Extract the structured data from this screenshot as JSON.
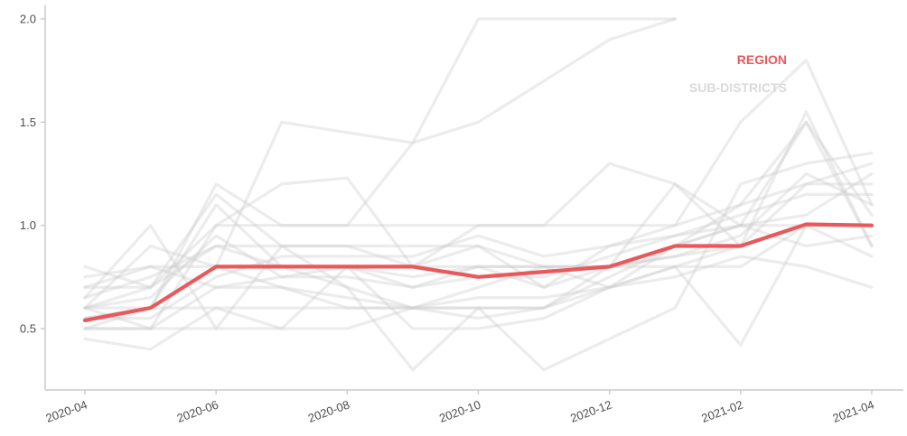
{
  "chart_data": {
    "type": "line",
    "x": [
      "2020-04",
      "2020-05",
      "2020-06",
      "2020-07",
      "2020-08",
      "2020-09",
      "2020-10",
      "2020-11",
      "2020-12",
      "2021-01",
      "2021-02",
      "2021-03",
      "2021-04"
    ],
    "x_tick_labels": [
      "2020-04",
      "2020-06",
      "2020-08",
      "2020-10",
      "2020-12",
      "2021-02",
      "2021-04"
    ],
    "y_ticks": [
      0.5,
      1.0,
      1.5,
      2.0
    ],
    "y_tick_labels": [
      "0.5",
      "1.0",
      "1.5",
      "2.0"
    ],
    "ylim": [
      0.28,
      2.08
    ],
    "grid": false,
    "legend": {
      "position": "top-right",
      "items": [
        {
          "label": "REGION",
          "color": "#e8595c"
        },
        {
          "label": "SUB-DISTRICTS",
          "color": "#d9d9d9"
        }
      ]
    },
    "highlight_series": {
      "name": "REGION",
      "color": "#e8595c",
      "values": [
        0.54,
        0.6,
        0.8,
        0.8,
        0.8,
        0.8,
        0.75,
        0.775,
        0.8,
        0.9,
        0.9,
        1.005,
        1.0
      ]
    },
    "background_series": {
      "name": "SUB-DISTRICTS",
      "color": "#cccccc",
      "series": [
        {
          "values": [
            0.55,
            0.6,
            1.2,
            1.0,
            1.0,
            1.4,
            1.5,
            1.7,
            1.9,
            2.0,
            2.0,
            2.0,
            2.0
          ],
          "end": 9
        },
        {
          "values": [
            0.5,
            0.6,
            0.8,
            1.5,
            1.45,
            1.4,
            2.0,
            2.0,
            2.0,
            2.0,
            2.0,
            2.0,
            2.0
          ],
          "end": 9
        },
        {
          "values": [
            0.6,
            0.7,
            1.0,
            1.2,
            1.23,
            0.8,
            1.0,
            1.0,
            1.0,
            1.0,
            1.5,
            1.8,
            1.1
          ]
        },
        {
          "values": [
            0.5,
            0.5,
            0.5,
            0.5,
            0.5,
            0.6,
            0.6,
            0.6,
            0.7,
            0.8,
            0.9,
            1.55,
            0.9
          ]
        },
        {
          "values": [
            0.65,
            1.0,
            0.5,
            0.9,
            0.7,
            0.3,
            0.6,
            0.3,
            0.45,
            0.6,
            1.2,
            1.3,
            1.35
          ]
        },
        {
          "values": [
            0.75,
            0.8,
            0.8,
            0.8,
            0.8,
            0.8,
            0.8,
            0.8,
            0.8,
            0.85,
            0.9,
            1.0,
            1.0
          ]
        },
        {
          "values": [
            0.6,
            0.5,
            1.0,
            1.0,
            1.0,
            1.0,
            1.0,
            1.0,
            1.3,
            1.2,
            0.9,
            1.2,
            1.3
          ]
        },
        {
          "values": [
            0.45,
            0.4,
            0.6,
            0.5,
            0.8,
            0.5,
            0.5,
            0.55,
            0.7,
            0.9,
            1.1,
            1.5,
            0.9
          ]
        },
        {
          "values": [
            0.8,
            0.7,
            0.9,
            0.9,
            0.9,
            0.9,
            0.9,
            0.7,
            0.9,
            1.0,
            1.1,
            1.2,
            1.2
          ]
        },
        {
          "values": [
            0.6,
            0.6,
            1.1,
            0.8,
            0.7,
            0.6,
            0.7,
            0.8,
            0.7,
            0.8,
            0.8,
            1.0,
            1.0
          ]
        },
        {
          "values": [
            0.7,
            0.8,
            0.7,
            0.7,
            0.6,
            0.6,
            0.6,
            0.6,
            0.8,
            0.8,
            0.42,
            1.0,
            0.85
          ]
        },
        {
          "values": [
            0.5,
            0.5,
            0.7,
            0.75,
            0.8,
            0.75,
            0.8,
            0.7,
            0.8,
            1.2,
            1.0,
            1.0,
            1.0
          ]
        },
        {
          "values": [
            0.65,
            0.75,
            0.9,
            0.8,
            0.8,
            0.7,
            0.8,
            0.8,
            0.8,
            0.85,
            0.95,
            1.25,
            1.1
          ]
        },
        {
          "values": [
            0.55,
            0.6,
            0.6,
            0.6,
            0.6,
            0.6,
            0.55,
            0.6,
            0.75,
            0.9,
            1.0,
            1.5,
            1.05
          ]
        },
        {
          "values": [
            0.6,
            0.9,
            0.8,
            0.7,
            0.65,
            0.6,
            0.65,
            0.65,
            0.7,
            0.75,
            0.85,
            0.8,
            0.7
          ]
        },
        {
          "values": [
            0.7,
            0.7,
            1.15,
            0.9,
            0.9,
            0.8,
            0.9,
            0.8,
            0.8,
            0.9,
            1.0,
            0.9,
            0.95
          ]
        },
        {
          "values": [
            0.55,
            0.55,
            0.75,
            0.85,
            0.85,
            0.85,
            0.95,
            0.85,
            0.9,
            0.95,
            1.05,
            1.15,
            1.15
          ]
        },
        {
          "values": [
            0.6,
            0.65,
            0.95,
            0.75,
            0.75,
            0.7,
            0.75,
            0.75,
            0.85,
            0.95,
            1.0,
            1.05,
            1.25
          ]
        }
      ]
    }
  }
}
